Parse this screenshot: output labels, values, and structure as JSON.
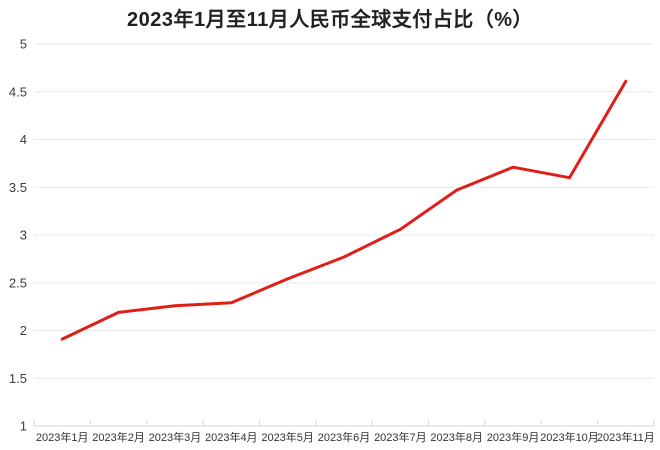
{
  "chart_data": {
    "type": "line",
    "title": "2023年1月至11月人民币全球支付占比（%）",
    "categories": [
      "2023年1月",
      "2023年2月",
      "2023年3月",
      "2023年4月",
      "2023年5月",
      "2023年6月",
      "2023年7月",
      "2023年8月",
      "2023年9月",
      "2023年10月",
      "2023年11月"
    ],
    "values": [
      1.91,
      2.19,
      2.26,
      2.29,
      2.54,
      2.77,
      3.06,
      3.47,
      3.71,
      3.6,
      4.61
    ],
    "xlabel": "",
    "ylabel": "",
    "ylim": [
      1,
      5
    ],
    "ytick_step": 0.5,
    "ytick_labels": [
      "1",
      "1.5",
      "2",
      "2.5",
      "3",
      "3.5",
      "4",
      "4.5",
      "5"
    ],
    "grid": true,
    "legend": "none",
    "line_color": "#e01e19",
    "gridline_color": "#e9e9e9",
    "axis_line_color": "#d6d6d6",
    "tick_color": "#d6d6d6",
    "title_color": "#212121",
    "ytick_label_color": "#3c3c3c",
    "xtick_label_color": "#333333",
    "background_color": "#ffffff"
  }
}
